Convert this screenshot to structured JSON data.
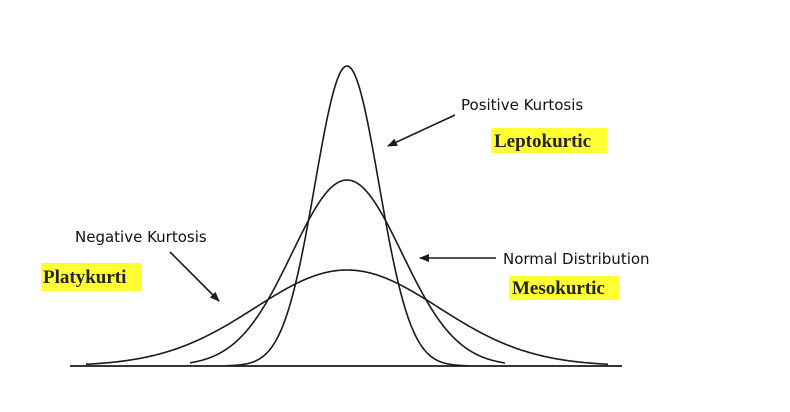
{
  "labels": {
    "positive_kurtosis": "Positive Kurtosis",
    "leptokurtic": "Leptokurtic",
    "negative_kurtosis": "Negative Kurtosis",
    "platykurti": "Platykurti",
    "normal_distribution": "Normal Distribution",
    "mesokurtic": "Mesokurtic"
  },
  "colors": {
    "highlight": "#ffff33",
    "stroke": "#1a1a1a",
    "text": "#111111"
  }
}
